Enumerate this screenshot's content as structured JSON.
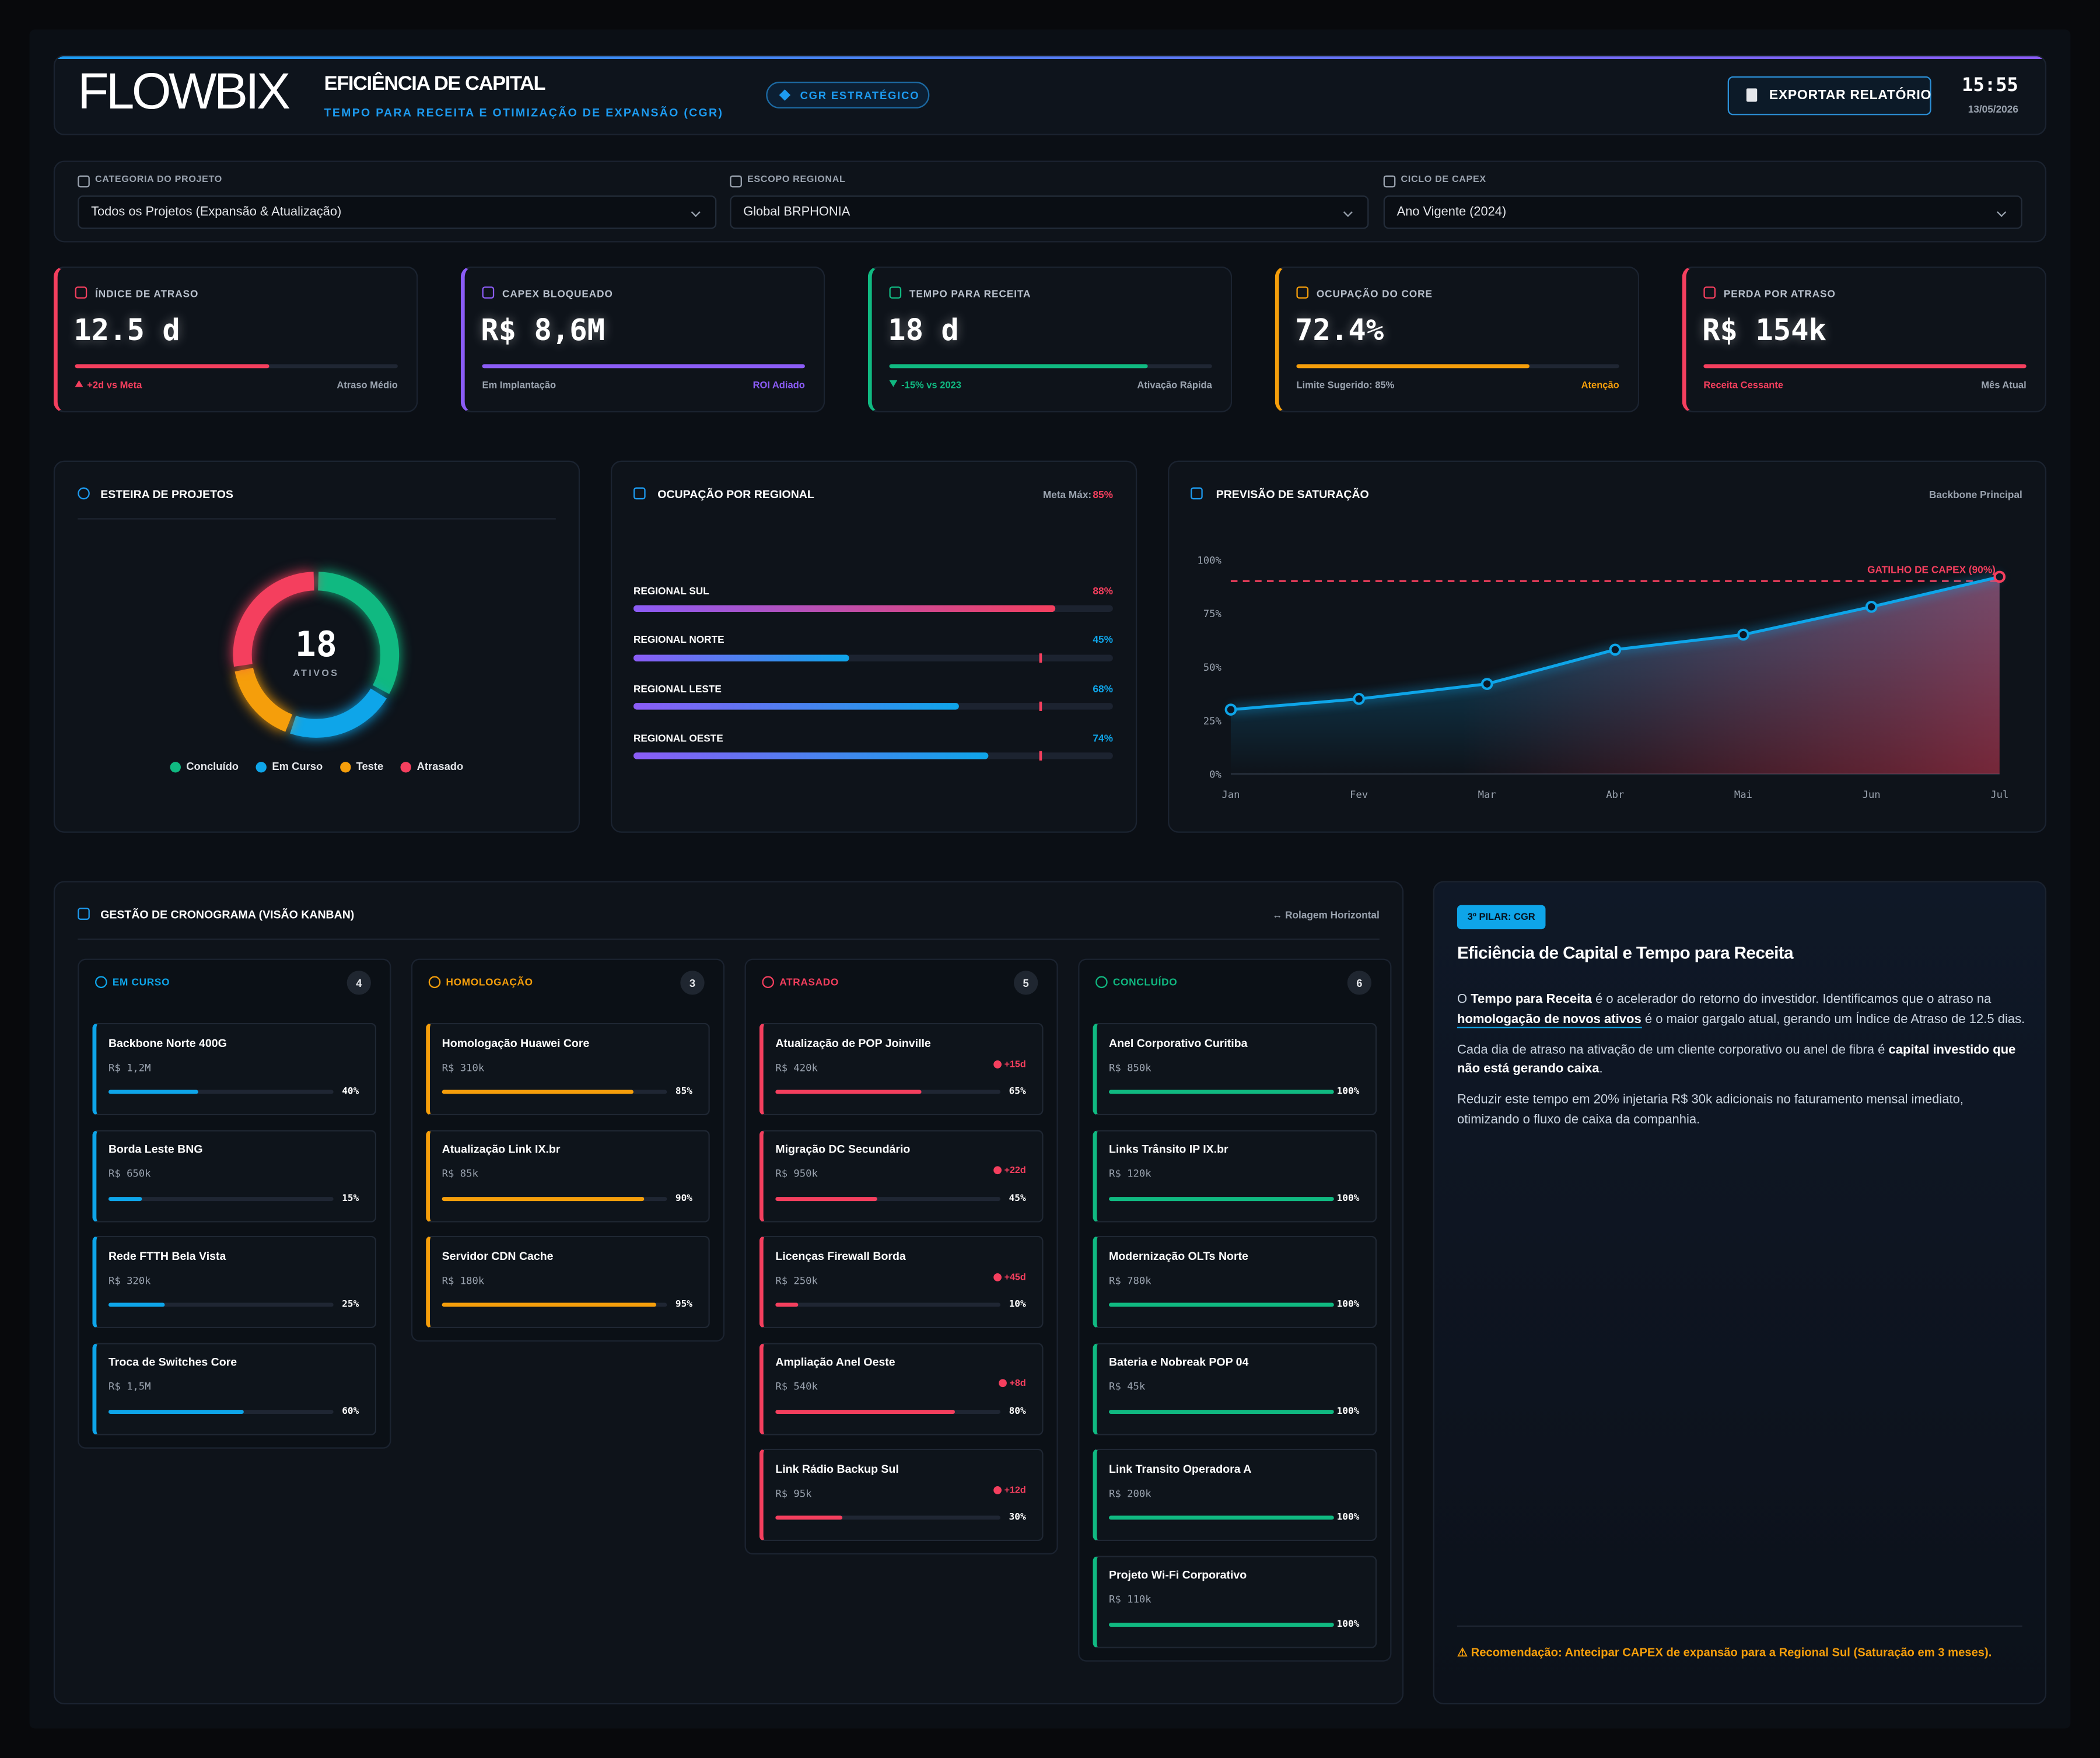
{
  "header": {
    "logo": "FLOWBIX",
    "title": "EFICIÊNCIA DE CAPITAL",
    "subtitle": "TEMPO PARA RECEITA E OTIMIZAÇÃO DE EXPANSÃO (CGR)",
    "badge": "CGR ESTRATÉGICO",
    "export_button": "EXPORTAR RELATÓRIO",
    "time": "15:55",
    "date": "13/05/2026"
  },
  "filters": [
    {
      "label": "CATEGORIA DO PROJETO",
      "value": "Todos os Projetos (Expansão & Atualização)"
    },
    {
      "label": "ESCOPO REGIONAL",
      "value": "Global BRPHONIA"
    },
    {
      "label": "CICLO DE CAPEX",
      "value": "Ano Vigente (2024)"
    }
  ],
  "kpis": [
    {
      "label": "ÍNDICE DE ATRASO",
      "value": "12.5 d",
      "progress": 60,
      "note": "+2d vs Meta",
      "note_icon": "up",
      "status": "Atraso Médio",
      "accent": "note",
      "color": "#f43f5e"
    },
    {
      "label": "CAPEX BLOQUEADO",
      "value": "R$ 8,6M",
      "progress": 100,
      "note": "Em Implantação",
      "status": "ROI Adiado",
      "accent": "status",
      "color": "#8b5cf6"
    },
    {
      "label": "TEMPO PARA RECEITA",
      "value": "18 d",
      "progress": 80,
      "note": "-15% vs 2023",
      "note_icon": "down",
      "status": "Ativação Rápida",
      "accent": "note",
      "color": "#10b981"
    },
    {
      "label": "OCUPAÇÃO DO CORE",
      "value": "72.4%",
      "progress": 72.4,
      "note": "Limite Sugerido: 85%",
      "status": "Atenção",
      "accent": "status",
      "color": "#f59e0b"
    },
    {
      "label": "PERDA POR ATRASO",
      "value": "R$ 154k",
      "progress": 100,
      "note": "Receita Cessante",
      "status": "Mês Atual",
      "accent": "note",
      "color": "#f43f5e"
    }
  ],
  "chart_data": [
    {
      "type": "donut",
      "title": "ESTEIRA DE PROJETOS",
      "center_value": "18",
      "center_label": "ATIVOS",
      "categories": [
        "Concluído",
        "Em Curso",
        "Teste",
        "Atrasado"
      ],
      "values": [
        6,
        4,
        3,
        5
      ],
      "colors": [
        "#10b981",
        "#0ea5e9",
        "#f59e0b",
        "#f43f5e"
      ]
    },
    {
      "type": "hbar",
      "title": "OCUPAÇÃO POR REGIONAL",
      "target_text": "Meta Máx:",
      "target": {
        "value": 85,
        "label": "85%"
      },
      "categories": [
        "REGIONAL SUL",
        "REGIONAL NORTE",
        "REGIONAL LESTE",
        "REGIONAL OESTE"
      ],
      "values": [
        88,
        45,
        68,
        74
      ],
      "value_labels": [
        "88%",
        "45%",
        "68%",
        "74%"
      ],
      "xlim": [
        0,
        100
      ]
    },
    {
      "type": "line",
      "title": "PREVISÃO DE SATURAÇÃO",
      "subtitle": "Backbone Principal",
      "categories": [
        "Jan",
        "Fev",
        "Mar",
        "Abr",
        "Mai",
        "Jun",
        "Jul"
      ],
      "values": [
        30,
        35,
        42,
        58,
        65,
        78,
        92
      ],
      "ylim": [
        0,
        100
      ],
      "yticks": [
        {
          "value": 0,
          "label": "0%"
        },
        {
          "value": 25,
          "label": "25%"
        },
        {
          "value": 50,
          "label": "50%"
        },
        {
          "value": 75,
          "label": "75%"
        },
        {
          "value": 100,
          "label": "100%"
        }
      ],
      "threshold": {
        "value": 90,
        "label": "GATILHO DE CAPEX (90%)"
      },
      "color": "#0ea5e9",
      "grid": false
    }
  ],
  "kanban": {
    "title": "GESTÃO DE CRONOGRAMA (VISÃO KANBAN)",
    "hint": "↔ Rolagem Horizontal",
    "columns": [
      {
        "title": "EM CURSO",
        "count": 4,
        "color": "#0ea5e9",
        "cards": [
          {
            "name": "Backbone Norte 400G",
            "capex": "R$ 1,2M",
            "progress": 40,
            "progress_label": "40%"
          },
          {
            "name": "Borda Leste BNG",
            "capex": "R$ 650k",
            "progress": 15,
            "progress_label": "15%"
          },
          {
            "name": "Rede FTTH Bela Vista",
            "capex": "R$ 320k",
            "progress": 25,
            "progress_label": "25%"
          },
          {
            "name": "Troca de Switches Core",
            "capex": "R$ 1,5M",
            "progress": 60,
            "progress_label": "60%"
          }
        ]
      },
      {
        "title": "HOMOLOGAÇÃO",
        "count": 3,
        "color": "#f59e0b",
        "cards": [
          {
            "name": "Homologação Huawei Core",
            "capex": "R$ 310k",
            "progress": 85,
            "progress_label": "85%"
          },
          {
            "name": "Atualização Link IX.br",
            "capex": "R$ 85k",
            "progress": 90,
            "progress_label": "90%"
          },
          {
            "name": "Servidor CDN Cache",
            "capex": "R$ 180k",
            "progress": 95,
            "progress_label": "95%"
          }
        ]
      },
      {
        "title": "ATRASADO",
        "count": 5,
        "color": "#f43f5e",
        "cards": [
          {
            "name": "Atualização de POP Joinville",
            "capex": "R$ 420k",
            "delay": "+15d",
            "progress": 65,
            "progress_label": "65%"
          },
          {
            "name": "Migração DC Secundário",
            "capex": "R$ 950k",
            "delay": "+22d",
            "progress": 45,
            "progress_label": "45%"
          },
          {
            "name": "Licenças Firewall Borda",
            "capex": "R$ 250k",
            "delay": "+45d",
            "progress": 10,
            "progress_label": "10%"
          },
          {
            "name": "Ampliação Anel Oeste",
            "capex": "R$ 540k",
            "delay": "+8d",
            "progress": 80,
            "progress_label": "80%"
          },
          {
            "name": "Link Rádio Backup Sul",
            "capex": "R$ 95k",
            "delay": "+12d",
            "progress": 30,
            "progress_label": "30%"
          }
        ]
      },
      {
        "title": "CONCLUÍDO",
        "count": 6,
        "color": "#10b981",
        "cards": [
          {
            "name": "Anel Corporativo Curitiba",
            "capex": "R$ 850k",
            "progress": 100,
            "progress_label": "100%"
          },
          {
            "name": "Links Trânsito IP IX.br",
            "capex": "R$ 120k",
            "progress": 100,
            "progress_label": "100%"
          },
          {
            "name": "Modernização OLTs Norte",
            "capex": "R$ 780k",
            "progress": 100,
            "progress_label": "100%"
          },
          {
            "name": "Bateria e Nobreak POP 04",
            "capex": "R$ 45k",
            "progress": 100,
            "progress_label": "100%"
          },
          {
            "name": "Link Transito Operadora A",
            "capex": "R$ 200k",
            "progress": 100,
            "progress_label": "100%"
          },
          {
            "name": "Projeto Wi-Fi Corporativo",
            "capex": "R$ 110k",
            "progress": 100,
            "progress_label": "100%"
          }
        ]
      }
    ]
  },
  "insight": {
    "badge": "3º PILAR: CGR",
    "title": "Eficiência de Capital e Tempo para Receita",
    "paragraphs": [
      [
        {
          "text": "O "
        },
        {
          "text": "Tempo para Receita",
          "style": "bold"
        },
        {
          "text": " é o acelerador do retorno do investidor. Identificamos que o atraso na "
        },
        {
          "text": "homologação de novos ativos",
          "style": "link"
        },
        {
          "text": " é o maior gargalo atual, gerando um Índice de Atraso de 12.5 dias."
        }
      ],
      [
        {
          "text": "Cada dia de atraso na ativação de um cliente corporativo ou anel de fibra é "
        },
        {
          "text": "capital investido que não está gerando caixa",
          "style": "bold"
        },
        {
          "text": "."
        }
      ],
      [
        {
          "text": "Reduzir este tempo em 20% injetaria R$ 30k adicionais no faturamento mensal imediato, otimizando o fluxo de caixa da companhia."
        }
      ]
    ],
    "recommendation": "⚠ Recomendação: Antecipar CAPEX de expansão para a Regional Sul (Saturação em 3 meses)."
  }
}
